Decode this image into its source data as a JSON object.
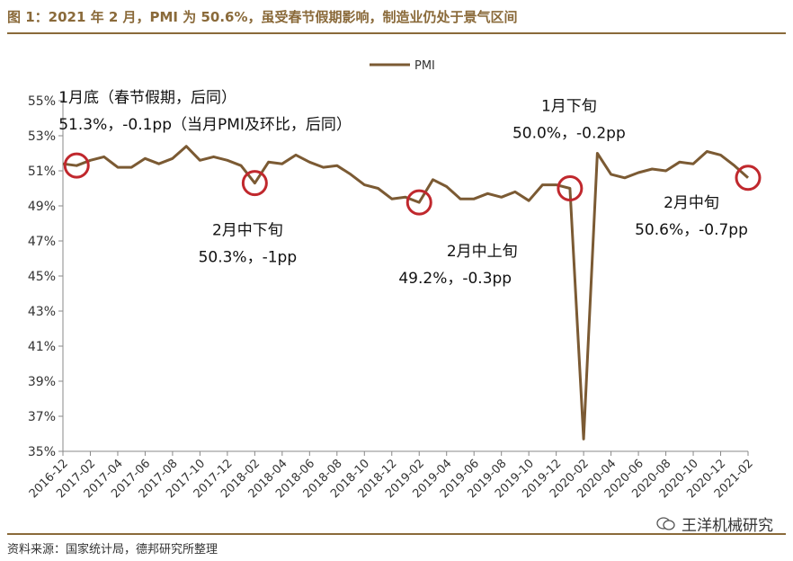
{
  "header": {
    "title": "图 1：2021 年 2 月，PMI 为 50.6%，虽受春节假期影响，制造业仍处于景气区间"
  },
  "footer": {
    "source": "资料来源：国家统计局，德邦研究所整理",
    "watermark": "王洋机械研究"
  },
  "colors": {
    "line": "#7b5a33",
    "circle": "#c0282d",
    "accent": "#8a6a3a"
  },
  "chart_data": {
    "type": "line",
    "title": "",
    "xlabel": "",
    "ylabel": "",
    "ylim": [
      35,
      55
    ],
    "yticks": [
      "35%",
      "37%",
      "39%",
      "41%",
      "43%",
      "45%",
      "47%",
      "49%",
      "51%",
      "53%",
      "55%"
    ],
    "ytick_values": [
      35,
      37,
      39,
      41,
      43,
      45,
      47,
      49,
      51,
      53,
      55
    ],
    "xticks": [
      "2016-12",
      "2017-02",
      "2017-04",
      "2017-06",
      "2017-08",
      "2017-10",
      "2017-12",
      "2018-02",
      "2018-04",
      "2018-06",
      "2018-08",
      "2018-10",
      "2018-12",
      "2019-02",
      "2019-04",
      "2019-06",
      "2019-08",
      "2019-10",
      "2019-12",
      "2020-02",
      "2020-04",
      "2020-06",
      "2020-08",
      "2020-10",
      "2020-12",
      "2021-02"
    ],
    "legend": "top-center",
    "grid": false,
    "x": [
      "2016-12",
      "2017-01",
      "2017-02",
      "2017-03",
      "2017-04",
      "2017-05",
      "2017-06",
      "2017-07",
      "2017-08",
      "2017-09",
      "2017-10",
      "2017-11",
      "2017-12",
      "2018-01",
      "2018-02",
      "2018-03",
      "2018-04",
      "2018-05",
      "2018-06",
      "2018-07",
      "2018-08",
      "2018-09",
      "2018-10",
      "2018-11",
      "2018-12",
      "2019-01",
      "2019-02",
      "2019-03",
      "2019-04",
      "2019-05",
      "2019-06",
      "2019-07",
      "2019-08",
      "2019-09",
      "2019-10",
      "2019-11",
      "2019-12",
      "2020-01",
      "2020-02",
      "2020-03",
      "2020-04",
      "2020-05",
      "2020-06",
      "2020-07",
      "2020-08",
      "2020-09",
      "2020-10",
      "2020-11",
      "2020-12",
      "2021-01",
      "2021-02"
    ],
    "series": [
      {
        "name": "PMI",
        "values": [
          51.4,
          51.3,
          51.6,
          51.8,
          51.2,
          51.2,
          51.7,
          51.4,
          51.7,
          52.4,
          51.6,
          51.8,
          51.6,
          51.3,
          50.3,
          51.5,
          51.4,
          51.9,
          51.5,
          51.2,
          51.3,
          50.8,
          50.2,
          50.0,
          49.4,
          49.5,
          49.2,
          50.5,
          50.1,
          49.4,
          49.4,
          49.7,
          49.5,
          49.8,
          49.3,
          50.2,
          50.2,
          50.0,
          35.7,
          52.0,
          50.8,
          50.6,
          50.9,
          51.1,
          51.0,
          51.5,
          51.4,
          52.1,
          51.9,
          51.3,
          50.6
        ]
      }
    ],
    "highlights": [
      {
        "x": "2017-01",
        "value": 51.3
      },
      {
        "x": "2018-02",
        "value": 50.3
      },
      {
        "x": "2019-02",
        "value": 49.2
      },
      {
        "x": "2020-01",
        "value": 50.0
      },
      {
        "x": "2021-02",
        "value": 50.6
      }
    ],
    "annotations": [
      {
        "lines": [
          "1月底（春节假期，后同）",
          "51.3%，-0.1pp（当月PMI及环比，后同）"
        ]
      },
      {
        "lines": [
          "2月中下旬",
          "50.3%，-1pp"
        ]
      },
      {
        "lines": [
          "2月中上旬",
          "49.2%，-0.3pp"
        ]
      },
      {
        "lines": [
          "1月下旬",
          "50.0%，-0.2pp"
        ]
      },
      {
        "lines": [
          "2月中旬",
          "50.6%，-0.7pp"
        ]
      }
    ]
  }
}
